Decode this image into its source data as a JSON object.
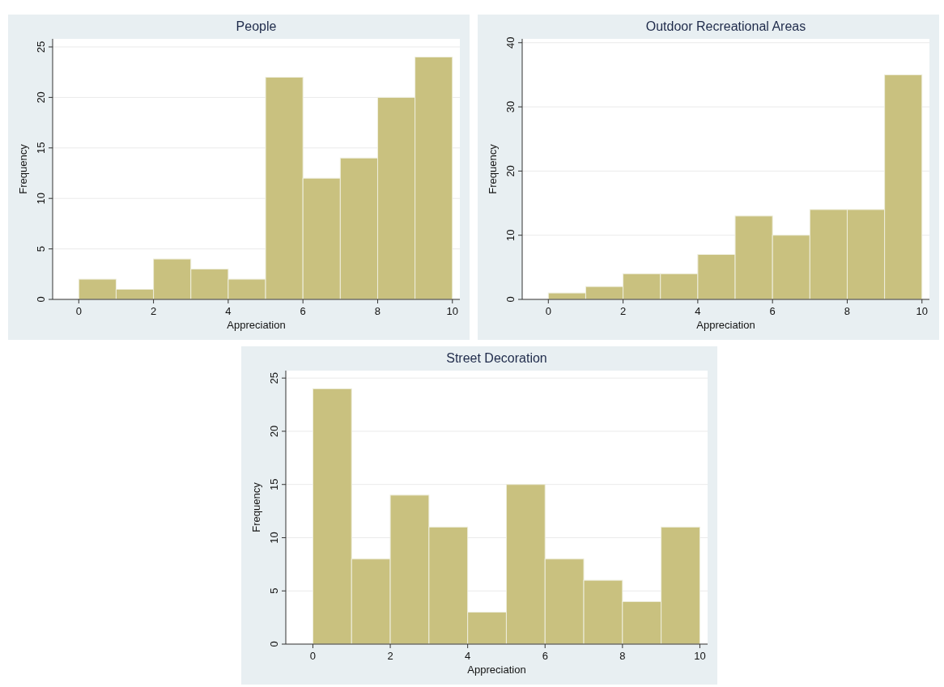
{
  "chart_data": [
    {
      "type": "histogram",
      "title": "People",
      "xlabel": "Appreciation",
      "ylabel": "Frequency",
      "bins": [
        0,
        1,
        2,
        3,
        4,
        5,
        6,
        7,
        8,
        9,
        10
      ],
      "values": [
        2,
        1,
        4,
        3,
        2,
        22,
        12,
        14,
        20,
        24
      ],
      "color": "#c9c17f",
      "xlim": [
        -0.7,
        10.2
      ],
      "xticks": [
        0,
        2,
        4,
        6,
        8,
        10
      ],
      "ylim": [
        0,
        25.8
      ],
      "yticks": [
        0,
        5,
        10,
        15,
        20,
        25
      ],
      "grid": "y"
    },
    {
      "type": "histogram",
      "title": "Outdoor Recreational Areas",
      "xlabel": "Appreciation",
      "ylabel": "Frequency",
      "bins": [
        0,
        1,
        2,
        3,
        4,
        5,
        6,
        7,
        8,
        9,
        10
      ],
      "values": [
        1,
        2,
        4,
        4,
        7,
        13,
        10,
        14,
        14,
        35
      ],
      "color": "#c9c17f",
      "xlim": [
        -0.7,
        10.2
      ],
      "xticks": [
        0,
        2,
        4,
        6,
        8,
        10
      ],
      "ylim": [
        0,
        40.6
      ],
      "yticks": [
        0,
        10,
        20,
        30,
        40
      ],
      "grid": "y"
    },
    {
      "type": "histogram",
      "title": "Street Decoration",
      "xlabel": "Appreciation",
      "ylabel": "Frequency",
      "bins": [
        0,
        1,
        2,
        3,
        4,
        5,
        6,
        7,
        8,
        9,
        10
      ],
      "values": [
        24,
        8,
        14,
        11,
        3,
        15,
        8,
        6,
        4,
        11
      ],
      "color": "#c9c17f",
      "xlim": [
        -0.7,
        10.2
      ],
      "xticks": [
        0,
        2,
        4,
        6,
        8,
        10
      ],
      "ylim": [
        0,
        25.7
      ],
      "yticks": [
        0,
        5,
        10,
        15,
        20,
        25
      ],
      "grid": "y"
    }
  ]
}
